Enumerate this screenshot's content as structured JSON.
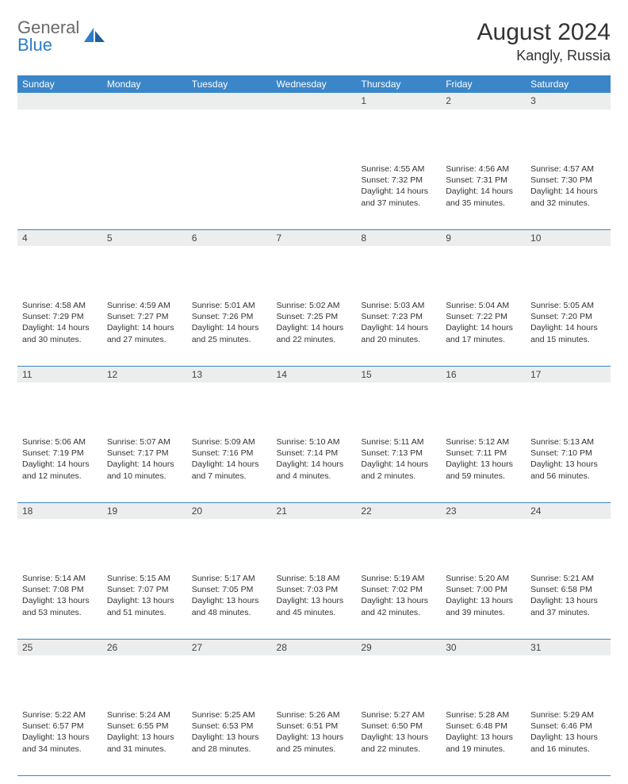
{
  "logo": {
    "line1": "General",
    "line2": "Blue"
  },
  "title": "August 2024",
  "location": "Kangly, Russia",
  "columns": [
    "Sunday",
    "Monday",
    "Tuesday",
    "Wednesday",
    "Thursday",
    "Friday",
    "Saturday"
  ],
  "colors": {
    "header_bg": "#3b86c8",
    "header_fg": "#ffffff",
    "daynum_bg": "#eceded",
    "rule": "#3b86c8",
    "logo_gray": "#6a6a6a",
    "logo_blue": "#2d7dc9"
  },
  "weeks": [
    [
      null,
      null,
      null,
      null,
      {
        "n": "1",
        "sunrise": "Sunrise: 4:55 AM",
        "sunset": "Sunset: 7:32 PM",
        "d1": "Daylight: 14 hours",
        "d2": "and 37 minutes."
      },
      {
        "n": "2",
        "sunrise": "Sunrise: 4:56 AM",
        "sunset": "Sunset: 7:31 PM",
        "d1": "Daylight: 14 hours",
        "d2": "and 35 minutes."
      },
      {
        "n": "3",
        "sunrise": "Sunrise: 4:57 AM",
        "sunset": "Sunset: 7:30 PM",
        "d1": "Daylight: 14 hours",
        "d2": "and 32 minutes."
      }
    ],
    [
      {
        "n": "4",
        "sunrise": "Sunrise: 4:58 AM",
        "sunset": "Sunset: 7:29 PM",
        "d1": "Daylight: 14 hours",
        "d2": "and 30 minutes."
      },
      {
        "n": "5",
        "sunrise": "Sunrise: 4:59 AM",
        "sunset": "Sunset: 7:27 PM",
        "d1": "Daylight: 14 hours",
        "d2": "and 27 minutes."
      },
      {
        "n": "6",
        "sunrise": "Sunrise: 5:01 AM",
        "sunset": "Sunset: 7:26 PM",
        "d1": "Daylight: 14 hours",
        "d2": "and 25 minutes."
      },
      {
        "n": "7",
        "sunrise": "Sunrise: 5:02 AM",
        "sunset": "Sunset: 7:25 PM",
        "d1": "Daylight: 14 hours",
        "d2": "and 22 minutes."
      },
      {
        "n": "8",
        "sunrise": "Sunrise: 5:03 AM",
        "sunset": "Sunset: 7:23 PM",
        "d1": "Daylight: 14 hours",
        "d2": "and 20 minutes."
      },
      {
        "n": "9",
        "sunrise": "Sunrise: 5:04 AM",
        "sunset": "Sunset: 7:22 PM",
        "d1": "Daylight: 14 hours",
        "d2": "and 17 minutes."
      },
      {
        "n": "10",
        "sunrise": "Sunrise: 5:05 AM",
        "sunset": "Sunset: 7:20 PM",
        "d1": "Daylight: 14 hours",
        "d2": "and 15 minutes."
      }
    ],
    [
      {
        "n": "11",
        "sunrise": "Sunrise: 5:06 AM",
        "sunset": "Sunset: 7:19 PM",
        "d1": "Daylight: 14 hours",
        "d2": "and 12 minutes."
      },
      {
        "n": "12",
        "sunrise": "Sunrise: 5:07 AM",
        "sunset": "Sunset: 7:17 PM",
        "d1": "Daylight: 14 hours",
        "d2": "and 10 minutes."
      },
      {
        "n": "13",
        "sunrise": "Sunrise: 5:09 AM",
        "sunset": "Sunset: 7:16 PM",
        "d1": "Daylight: 14 hours",
        "d2": "and 7 minutes."
      },
      {
        "n": "14",
        "sunrise": "Sunrise: 5:10 AM",
        "sunset": "Sunset: 7:14 PM",
        "d1": "Daylight: 14 hours",
        "d2": "and 4 minutes."
      },
      {
        "n": "15",
        "sunrise": "Sunrise: 5:11 AM",
        "sunset": "Sunset: 7:13 PM",
        "d1": "Daylight: 14 hours",
        "d2": "and 2 minutes."
      },
      {
        "n": "16",
        "sunrise": "Sunrise: 5:12 AM",
        "sunset": "Sunset: 7:11 PM",
        "d1": "Daylight: 13 hours",
        "d2": "and 59 minutes."
      },
      {
        "n": "17",
        "sunrise": "Sunrise: 5:13 AM",
        "sunset": "Sunset: 7:10 PM",
        "d1": "Daylight: 13 hours",
        "d2": "and 56 minutes."
      }
    ],
    [
      {
        "n": "18",
        "sunrise": "Sunrise: 5:14 AM",
        "sunset": "Sunset: 7:08 PM",
        "d1": "Daylight: 13 hours",
        "d2": "and 53 minutes."
      },
      {
        "n": "19",
        "sunrise": "Sunrise: 5:15 AM",
        "sunset": "Sunset: 7:07 PM",
        "d1": "Daylight: 13 hours",
        "d2": "and 51 minutes."
      },
      {
        "n": "20",
        "sunrise": "Sunrise: 5:17 AM",
        "sunset": "Sunset: 7:05 PM",
        "d1": "Daylight: 13 hours",
        "d2": "and 48 minutes."
      },
      {
        "n": "21",
        "sunrise": "Sunrise: 5:18 AM",
        "sunset": "Sunset: 7:03 PM",
        "d1": "Daylight: 13 hours",
        "d2": "and 45 minutes."
      },
      {
        "n": "22",
        "sunrise": "Sunrise: 5:19 AM",
        "sunset": "Sunset: 7:02 PM",
        "d1": "Daylight: 13 hours",
        "d2": "and 42 minutes."
      },
      {
        "n": "23",
        "sunrise": "Sunrise: 5:20 AM",
        "sunset": "Sunset: 7:00 PM",
        "d1": "Daylight: 13 hours",
        "d2": "and 39 minutes."
      },
      {
        "n": "24",
        "sunrise": "Sunrise: 5:21 AM",
        "sunset": "Sunset: 6:58 PM",
        "d1": "Daylight: 13 hours",
        "d2": "and 37 minutes."
      }
    ],
    [
      {
        "n": "25",
        "sunrise": "Sunrise: 5:22 AM",
        "sunset": "Sunset: 6:57 PM",
        "d1": "Daylight: 13 hours",
        "d2": "and 34 minutes."
      },
      {
        "n": "26",
        "sunrise": "Sunrise: 5:24 AM",
        "sunset": "Sunset: 6:55 PM",
        "d1": "Daylight: 13 hours",
        "d2": "and 31 minutes."
      },
      {
        "n": "27",
        "sunrise": "Sunrise: 5:25 AM",
        "sunset": "Sunset: 6:53 PM",
        "d1": "Daylight: 13 hours",
        "d2": "and 28 minutes."
      },
      {
        "n": "28",
        "sunrise": "Sunrise: 5:26 AM",
        "sunset": "Sunset: 6:51 PM",
        "d1": "Daylight: 13 hours",
        "d2": "and 25 minutes."
      },
      {
        "n": "29",
        "sunrise": "Sunrise: 5:27 AM",
        "sunset": "Sunset: 6:50 PM",
        "d1": "Daylight: 13 hours",
        "d2": "and 22 minutes."
      },
      {
        "n": "30",
        "sunrise": "Sunrise: 5:28 AM",
        "sunset": "Sunset: 6:48 PM",
        "d1": "Daylight: 13 hours",
        "d2": "and 19 minutes."
      },
      {
        "n": "31",
        "sunrise": "Sunrise: 5:29 AM",
        "sunset": "Sunset: 6:46 PM",
        "d1": "Daylight: 13 hours",
        "d2": "and 16 minutes."
      }
    ]
  ]
}
